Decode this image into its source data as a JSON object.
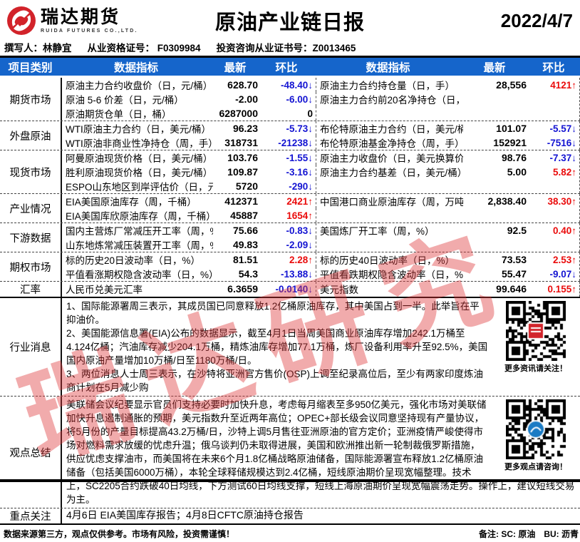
{
  "header": {
    "logo_cn": "瑞达期货",
    "logo_en": "RUIDA FUTURES CO.,LTD.",
    "title": "原油产业链日报",
    "date": "2022/4/7"
  },
  "byline": {
    "writer": "撰写人：林静宜",
    "qualification": "从业资格证号：  F0309984",
    "advisory": "投资咨询从业证书号：Z0013465"
  },
  "table": {
    "headers": [
      "项目类别",
      "数据指标",
      "最新",
      "环比",
      "数据指标",
      "最新",
      "环比"
    ],
    "groups": [
      {
        "category": "期货市场",
        "rows": [
          {
            "l_ind": "原油主力合约收盘价（日，元/桶）",
            "l_new": "628.70",
            "l_chg": "-48.40↓",
            "l_dir": "down",
            "r_ind": "原油主力合约持仓量（日，手）",
            "r_new": "28,556",
            "r_chg": "4121↑",
            "r_dir": "up"
          },
          {
            "l_ind": "原油 5-6 价差（日，元/桶）",
            "l_new": "-2.00",
            "l_chg": "-6.00↓",
            "l_dir": "down",
            "r_ind": "原油主力合约前20名净持仓（日，手）",
            "r_new": "",
            "r_chg": "",
            "r_dir": "flat"
          },
          {
            "l_ind": "原油期货仓单（日，桶）",
            "l_new": "6287000",
            "l_chg": "0",
            "l_dir": "flat",
            "r_ind": "",
            "r_new": "",
            "r_chg": "",
            "r_dir": "flat"
          }
        ]
      },
      {
        "category": "外盘原油",
        "rows": [
          {
            "l_ind": "WTI原油主力合约（日，美元/桶）",
            "l_new": "96.23",
            "l_chg": "-5.73↓",
            "l_dir": "down",
            "r_ind": "布伦特原油主力合约（日，美元/桶）",
            "r_new": "101.07",
            "r_chg": "-5.57↓",
            "r_dir": "down"
          },
          {
            "l_ind": "WTI原油非商业性净持仓（周，手）",
            "l_new": "318731",
            "l_chg": "-21238↓",
            "l_dir": "down",
            "r_ind": "布伦特原油基金净持仓（周，手）",
            "r_new": "152921",
            "r_chg": "-7516↓",
            "r_dir": "down"
          }
        ]
      },
      {
        "category": "现货市场",
        "rows": [
          {
            "l_ind": "阿曼原油现货价格（日，美元/桶）",
            "l_new": "103.76",
            "l_chg": "-1.55↓",
            "l_dir": "down",
            "r_ind": "原油主力收盘价（日，美元换算价）",
            "r_new": "98.76",
            "r_chg": "-7.37↓",
            "r_dir": "down"
          },
          {
            "l_ind": "胜利原油现货价格（日，美元/桶）",
            "l_new": "109.87",
            "l_chg": "-3.16↓",
            "l_dir": "down",
            "r_ind": "原油主力合约基差（日，美元/桶）",
            "r_new": "5.00",
            "r_chg": "5.82↑",
            "r_dir": "up"
          },
          {
            "l_ind": "ESPO山东地区到岸评估价（日，元",
            "l_new": "5720",
            "l_chg": "-290↓",
            "l_dir": "down",
            "r_ind": "",
            "r_new": "",
            "r_chg": "",
            "r_dir": "flat"
          }
        ]
      },
      {
        "category": "产业情况",
        "rows": [
          {
            "l_ind": "EIA美国原油库存（周，千桶）",
            "l_new": "412371",
            "l_chg": "2421↑",
            "l_dir": "up",
            "r_ind": "中国港口商业原油库存（周，万吨）",
            "r_new": "2,838.40",
            "r_chg": "38.30↑",
            "r_dir": "up"
          },
          {
            "l_ind": "EIA美国库欣原油库存（周，千桶）",
            "l_new": "45887",
            "l_chg": "1654↑",
            "l_dir": "up",
            "r_ind": "",
            "r_new": "",
            "r_chg": "",
            "r_dir": "flat"
          }
        ]
      },
      {
        "category": "下游数据",
        "rows": [
          {
            "l_ind": "国内主营炼厂常减压开工率（周，%",
            "l_new": "75.66",
            "l_chg": "-0.83↓",
            "l_dir": "down",
            "r_ind": "美国炼厂开工率（周，%）",
            "r_new": "92.5",
            "r_chg": "0.40↑",
            "r_dir": "up"
          },
          {
            "l_ind": "山东地炼常减压装置开工率（周，%",
            "l_new": "49.83",
            "l_chg": "-2.09↓",
            "l_dir": "down",
            "r_ind": "",
            "r_new": "",
            "r_chg": "",
            "r_dir": "flat"
          }
        ]
      },
      {
        "category": "期权市场",
        "rows": [
          {
            "l_ind": "标的历史20日波动率（日，%）",
            "l_new": "81.51",
            "l_chg": "2.28↑",
            "l_dir": "up",
            "r_ind": "标的历史40日波动率（日，%）",
            "r_new": "73.53",
            "r_chg": "2.53↑",
            "r_dir": "up"
          },
          {
            "l_ind": "平值看涨期权隐含波动率（日，%）",
            "l_new": "54.3",
            "l_chg": "-13.88↓",
            "l_dir": "down",
            "r_ind": "平值看跌期权隐含波动率（日，%）",
            "r_new": "55.47",
            "r_chg": "-9.07↓",
            "r_dir": "down"
          }
        ]
      },
      {
        "category": "汇率",
        "rows": [
          {
            "l_ind": "人民币兑美元汇率",
            "l_new": "6.3659",
            "l_chg": "-0.0140↓",
            "l_dir": "down",
            "r_ind": "美元指数",
            "r_new": "99.646",
            "r_chg": "0.155↑",
            "r_dir": "up"
          }
        ]
      }
    ]
  },
  "news": {
    "category": "行业消息",
    "paragraphs": [
      "1、国际能源署周三表示，其成员国已同意释放1.2亿桶原油库存，其中美国占到一半。此举旨在平抑油价。",
      "2、美国能源信息署(EIA)公布的数据显示，截至4月1日当周美国商业原油库存增加242.1万桶至4.124亿桶；汽油库存减少204.1万桶，精炼油库存增加77.1万桶，炼厂设备利用率升至92.5%，美国国内原油产量增加10万桶/日至1180万桶/日。",
      "3、两位消息人士周三表示，在沙特将亚洲官方售价(OSP)上调至纪录高位后，至少有两家印度炼油商计划在5月减少购"
    ],
    "qr_caption": "更多资讯请关注！"
  },
  "summary": {
    "category": "观点总结",
    "text": "美联储会议纪要显示官员们支持必要时加快升息，考虑每月缩表至多950亿美元，强化市场对美联储加快升息遏制通胀的预期，美元指数升至近两年高位；OPEC+部长级会议同意坚持现有产量协议，将5月份的产量目标提高43.2万桶/日，沙特上调5月售往亚洲原油的官方定价；亚洲疫情严峻使得市场对燃料需求放缓的忧虑升温；俄乌谈判仍未取得进展，美国和欧洲推出新一轮制裁俄罗斯措施，供应忧虑支撑油市，而美国将在未来6个月1.8亿桶战略原油储备，国际能源署宣布释放1.2亿桶原油储备（包括美国6000万桶），本轮全球释储规模达到2.4亿桶，短线原油期价呈现宽幅整理。技术上，SC2205合约跌破40日均线，下方测试60日均线支撑，短线上海原油期价呈现宽幅震荡走势。操作上，建议短线交易为主。",
    "qr_caption": "更多观点请咨询！"
  },
  "focus": {
    "category": "重点关注",
    "text": "4月6日 EIA美国库存报告；4月8日CFTC原油持仓报告"
  },
  "footer": {
    "left": "数据来源第三方，观点仅供参考。市场有风险，投资需谨慎！",
    "right": "备注: SC: 原油　BU: 沥青"
  },
  "watermark": "瑞达研究",
  "colors": {
    "header_blue": "#1565cb",
    "down_blue": "#1414d2",
    "up_red": "#ea0b0b",
    "logo_red": "#d2232a"
  }
}
